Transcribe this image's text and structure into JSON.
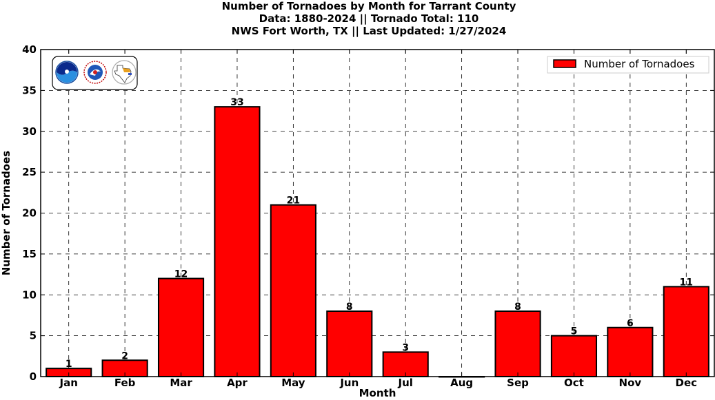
{
  "chart_data": {
    "type": "bar",
    "title": [
      "Number of Tornadoes by Month for Tarrant County",
      "Data: 1880-2024 || Tornado Total: 110",
      "NWS Fort Worth, TX || Last Updated: 1/27/2024"
    ],
    "xlabel": "Month",
    "ylabel": "Number of Tornadoes",
    "categories": [
      "Jan",
      "Feb",
      "Mar",
      "Apr",
      "May",
      "Jun",
      "Jul",
      "Aug",
      "Sep",
      "Oct",
      "Nov",
      "Dec"
    ],
    "series": [
      {
        "name": "Number of Tornadoes",
        "values": [
          1,
          2,
          12,
          33,
          21,
          8,
          3,
          0,
          8,
          5,
          6,
          11
        ],
        "color": "#ff0000"
      }
    ],
    "ylim": [
      0,
      40
    ],
    "yticks": [
      0,
      5,
      10,
      15,
      20,
      25,
      30,
      35,
      40
    ],
    "grid": true,
    "legend_position": "top-right",
    "logos": [
      "noaa-logo",
      "nws-logo",
      "texas-map-logo"
    ]
  }
}
